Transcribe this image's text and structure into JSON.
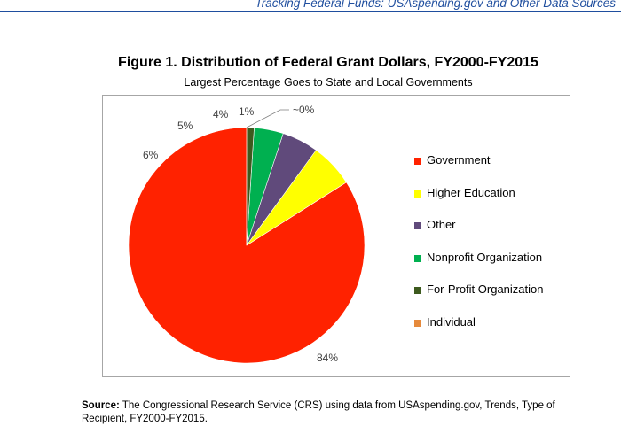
{
  "page": {
    "running_header": "Tracking Federal Funds: USAspending.gov and Other Data Sources",
    "source_label": "Source:",
    "source_text": "The Congressional Research Service (CRS) using data from USAspending.gov, Trends, Type of Recipient, FY2000-FY2015."
  },
  "chart_data": {
    "type": "pie",
    "title": "Figure 1. Distribution of Federal Grant Dollars, FY2000-FY2015",
    "subtitle": "Largest Percentage Goes to State and Local Governments",
    "legend_position": "right",
    "slices": [
      {
        "name": "Government",
        "value": 84,
        "label": "84%",
        "color": "#ff2200"
      },
      {
        "name": "Higher Education",
        "value": 6,
        "label": "6%",
        "color": "#ffff00"
      },
      {
        "name": "Other",
        "value": 5,
        "label": "5%",
        "color": "#604a7b"
      },
      {
        "name": "Nonprofit Organization",
        "value": 4,
        "label": "4%",
        "color": "#00b050"
      },
      {
        "name": "For-Profit Organization",
        "value": 1,
        "label": "1%",
        "color": "#3d5a1e"
      },
      {
        "name": "Individual",
        "value": 0.02,
        "label": "~0%",
        "color": "#e68a3c"
      }
    ]
  }
}
